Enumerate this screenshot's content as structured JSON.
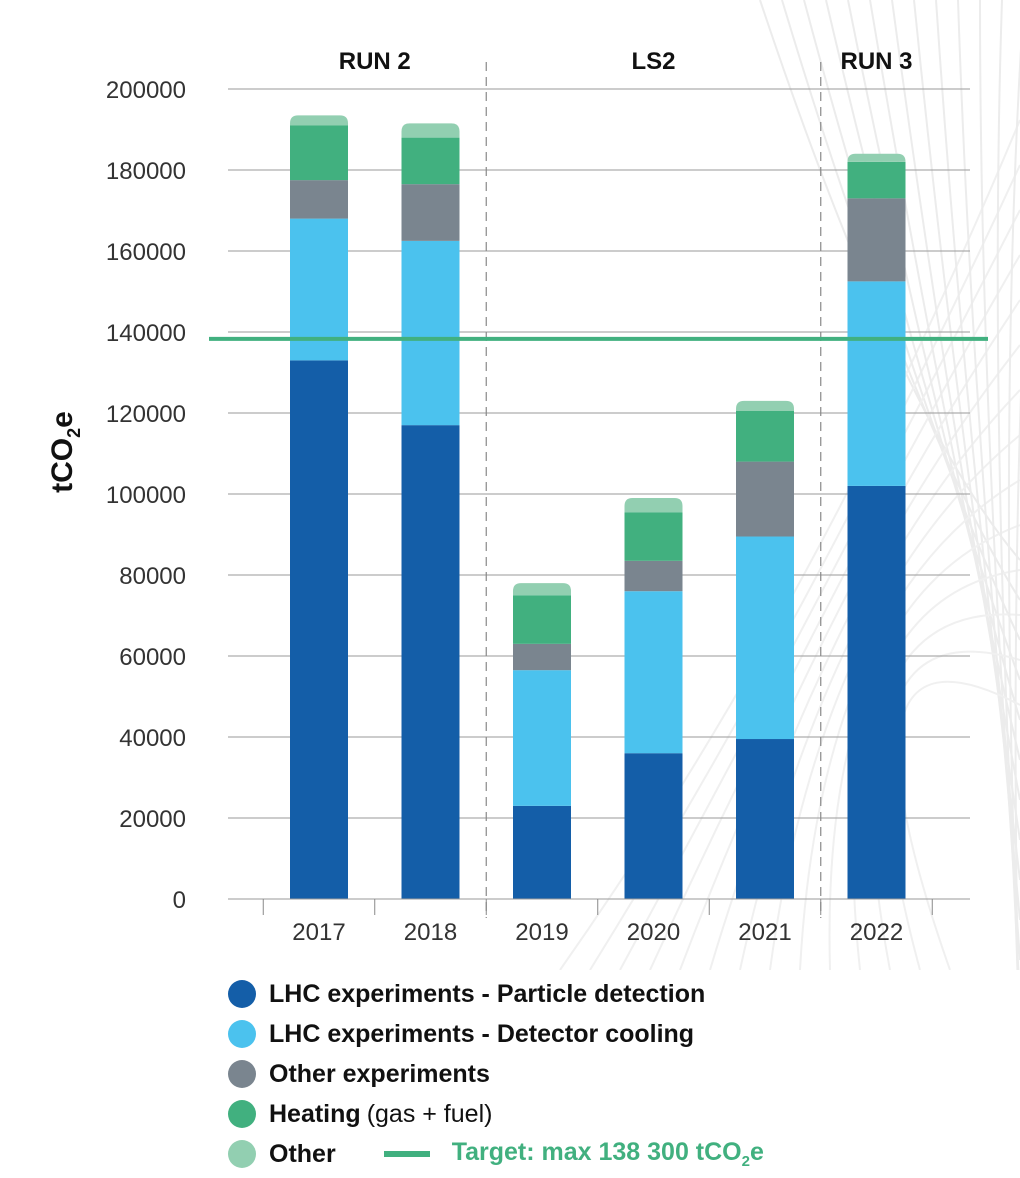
{
  "chart_data": {
    "type": "bar",
    "stacked": true,
    "categories": [
      "2017",
      "2018",
      "2019",
      "2020",
      "2021",
      "2022"
    ],
    "series": [
      {
        "name": "LHC experiments - Particle detection",
        "color": "#145ea8",
        "values": [
          133000,
          117000,
          23000,
          36000,
          39500,
          102000
        ]
      },
      {
        "name": "LHC experiments - Detector cooling",
        "color": "#4bc2ee",
        "values": [
          35000,
          45500,
          33500,
          40000,
          50000,
          50500
        ]
      },
      {
        "name": "Other experiments",
        "color": "#7a858f",
        "values": [
          9500,
          14000,
          6500,
          7500,
          18500,
          20500
        ]
      },
      {
        "name": "Heating",
        "note": "(gas + fuel)",
        "color": "#41b07f",
        "values": [
          13500,
          11500,
          12000,
          12000,
          12500,
          9000
        ]
      },
      {
        "name": "Other",
        "color": "#92cfb1",
        "values": [
          2500,
          3500,
          3000,
          3500,
          2500,
          2000
        ]
      }
    ],
    "ylabel_main": "tCO",
    "ylabel_sub": "2",
    "ylabel_end": "e",
    "ylim": [
      0,
      200000
    ],
    "yticks": [
      "0",
      "20000",
      "40000",
      "60000",
      "80000",
      "100000",
      "120000",
      "140000",
      "160000",
      "180000",
      "200000"
    ],
    "grid": true,
    "periods": [
      {
        "label": "RUN 2",
        "categories": [
          "2017",
          "2018"
        ]
      },
      {
        "label": "LS2",
        "categories": [
          "2019",
          "2020",
          "2021"
        ]
      },
      {
        "label": "RUN 3",
        "categories": [
          "2022"
        ]
      }
    ],
    "target": {
      "value": 138300,
      "color": "#41b07f",
      "label_main": "Target: max 138 300 tCO",
      "label_sub": "2",
      "label_end": "e"
    }
  }
}
